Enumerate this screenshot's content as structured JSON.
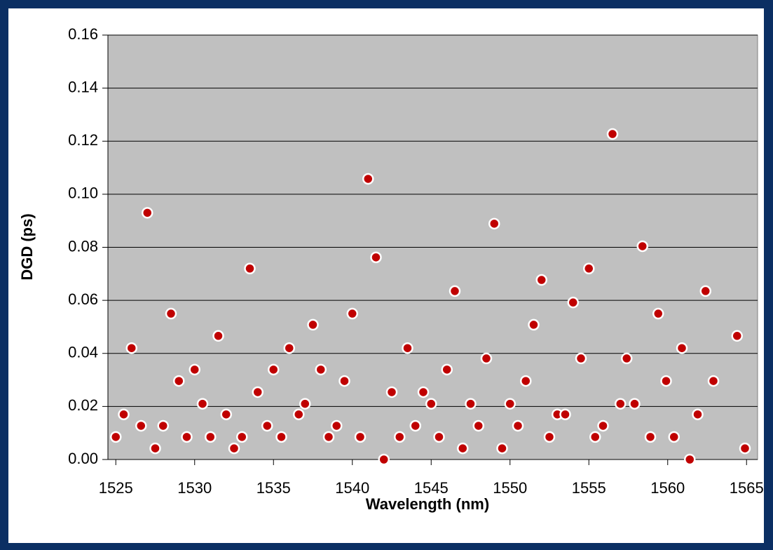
{
  "chart_data": {
    "type": "scatter",
    "xlabel": "Wavelength (nm)",
    "ylabel": "DGD (ps)",
    "xlim": [
      1524.5,
      1565.7
    ],
    "ylim": [
      0,
      0.16
    ],
    "xticks": [
      1525,
      1530,
      1535,
      1540,
      1545,
      1550,
      1555,
      1560,
      1565
    ],
    "yticks": [
      {
        "value": 0,
        "label": "0.00"
      },
      {
        "value": 0.02,
        "label": "0.02"
      },
      {
        "value": 0.04,
        "label": "0.04"
      },
      {
        "value": 0.06,
        "label": "0.06"
      },
      {
        "value": 0.08,
        "label": "0.08"
      },
      {
        "value": 0.1,
        "label": "0.10"
      },
      {
        "value": 0.12,
        "label": "0.12"
      },
      {
        "value": 0.14,
        "label": "0.14"
      },
      {
        "value": 0.16,
        "label": "0.16"
      }
    ],
    "grid": true,
    "color": "#c00000",
    "x": [
      1525.0,
      1525.5,
      1526.0,
      1526.6,
      1527.0,
      1527.5,
      1528.0,
      1528.5,
      1529.0,
      1529.5,
      1530.0,
      1530.5,
      1531.0,
      1531.5,
      1532.0,
      1532.5,
      1533.0,
      1533.5,
      1534.0,
      1534.6,
      1535.0,
      1535.5,
      1536.0,
      1536.6,
      1537.0,
      1537.5,
      1538.0,
      1538.5,
      1539.0,
      1539.5,
      1540.0,
      1540.5,
      1541.0,
      1541.5,
      1542.0,
      1542.5,
      1543.0,
      1543.5,
      1544.0,
      1544.5,
      1545.0,
      1545.5,
      1546.0,
      1546.5,
      1547.0,
      1547.5,
      1548.0,
      1548.5,
      1549.0,
      1549.5,
      1550.0,
      1550.5,
      1551.0,
      1551.5,
      1552.0,
      1552.5,
      1553.0,
      1553.5,
      1554.0,
      1554.5,
      1555.0,
      1555.4,
      1555.9,
      1556.5,
      1557.0,
      1557.4,
      1557.9,
      1558.4,
      1558.9,
      1559.4,
      1559.9,
      1560.4,
      1560.9,
      1561.4,
      1561.9,
      1562.4,
      1562.9,
      1564.4,
      1564.9
    ],
    "values": [
      0.0085,
      0.017,
      0.042,
      0.0127,
      0.093,
      0.0042,
      0.0127,
      0.055,
      0.0296,
      0.0085,
      0.0339,
      0.021,
      0.0085,
      0.0466,
      0.017,
      0.0042,
      0.0085,
      0.072,
      0.0254,
      0.0127,
      0.0339,
      0.0085,
      0.042,
      0.017,
      0.021,
      0.0508,
      0.0339,
      0.0085,
      0.0127,
      0.0296,
      0.055,
      0.0085,
      0.1058,
      0.0762,
      0,
      0.0254,
      0.0085,
      0.042,
      0.0127,
      0.0254,
      0.021,
      0.0085,
      0.0339,
      0.0635,
      0.0042,
      0.021,
      0.0127,
      0.0381,
      0.0889,
      0.0042,
      0.021,
      0.0127,
      0.0296,
      0.0508,
      0.0677,
      0.0085,
      0.017,
      0.017,
      0.0592,
      0.0381,
      0.072,
      0.0085,
      0.0127,
      0.1227,
      0.021,
      0.0381,
      0.021,
      0.0804,
      0.0085,
      0.055,
      0.0296,
      0.0085,
      0.042,
      0,
      0.017,
      0.0635,
      0.0296,
      0.0466,
      0.0042
    ]
  }
}
